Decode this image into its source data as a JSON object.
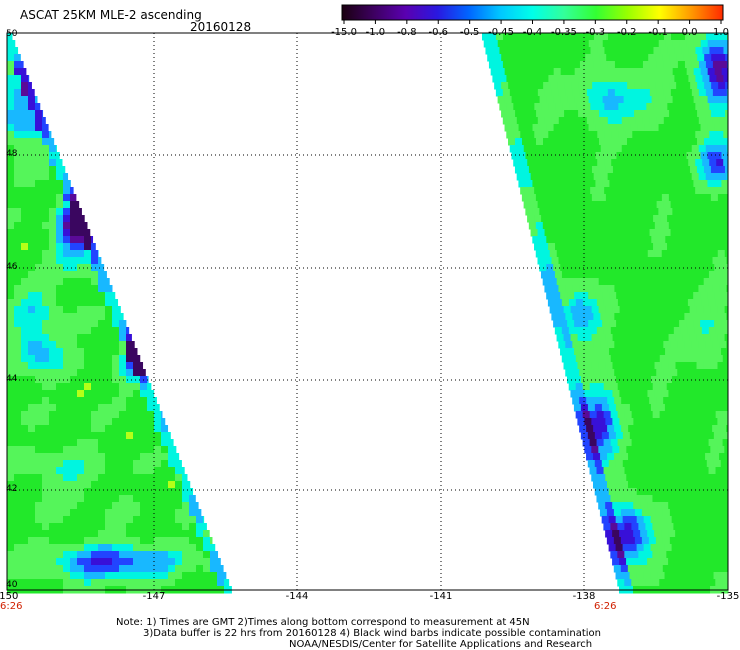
{
  "header": {
    "title": "ASCAT 25KM MLE-2 ascending",
    "date": "20160128"
  },
  "colorbar": {
    "labels": [
      "-15.0",
      "-1.0",
      "-0.8",
      "-0.6",
      "-0.5",
      "-0.45",
      "-0.4",
      "-0.35",
      "-0.3",
      "-0.2",
      "-0.1",
      "0.0",
      "1.0"
    ],
    "colors": [
      "#1a0010",
      "#3d0060",
      "#5a00b0",
      "#2a18e0",
      "#0066ff",
      "#00c8ff",
      "#00ffe8",
      "#33ff99",
      "#33ff33",
      "#99ff00",
      "#ffff00",
      "#ff9900",
      "#ff2a00"
    ]
  },
  "map": {
    "lat_labels": [
      "50",
      "48",
      "46",
      "44",
      "42",
      "40"
    ],
    "lon_labels": [
      "-150",
      "-147",
      "-144",
      "-141",
      "-138",
      "-135"
    ],
    "time_labels": [
      "6:26",
      "6:26"
    ],
    "colors": {
      "green": "#22e82a",
      "light_green": "#55f55a",
      "cyan": "#00f5e0",
      "light_blue": "#18b8ff",
      "blue": "#2244ff",
      "dark_blue": "#3810d8",
      "purple": "#5a0a98",
      "dark_purple": "#3a0660",
      "yellowgreen": "#b6ff18"
    }
  },
  "notes": {
    "line1": "Note: 1) Times are GMT 2)Times along bottom correspond to measurement at 45N",
    "line2": "3)Data buffer is 22 hrs from 20160128 4) Black wind barbs indicate possible contamination",
    "line3": "NOAA/NESDIS/Center for Satellite Applications and Research"
  }
}
